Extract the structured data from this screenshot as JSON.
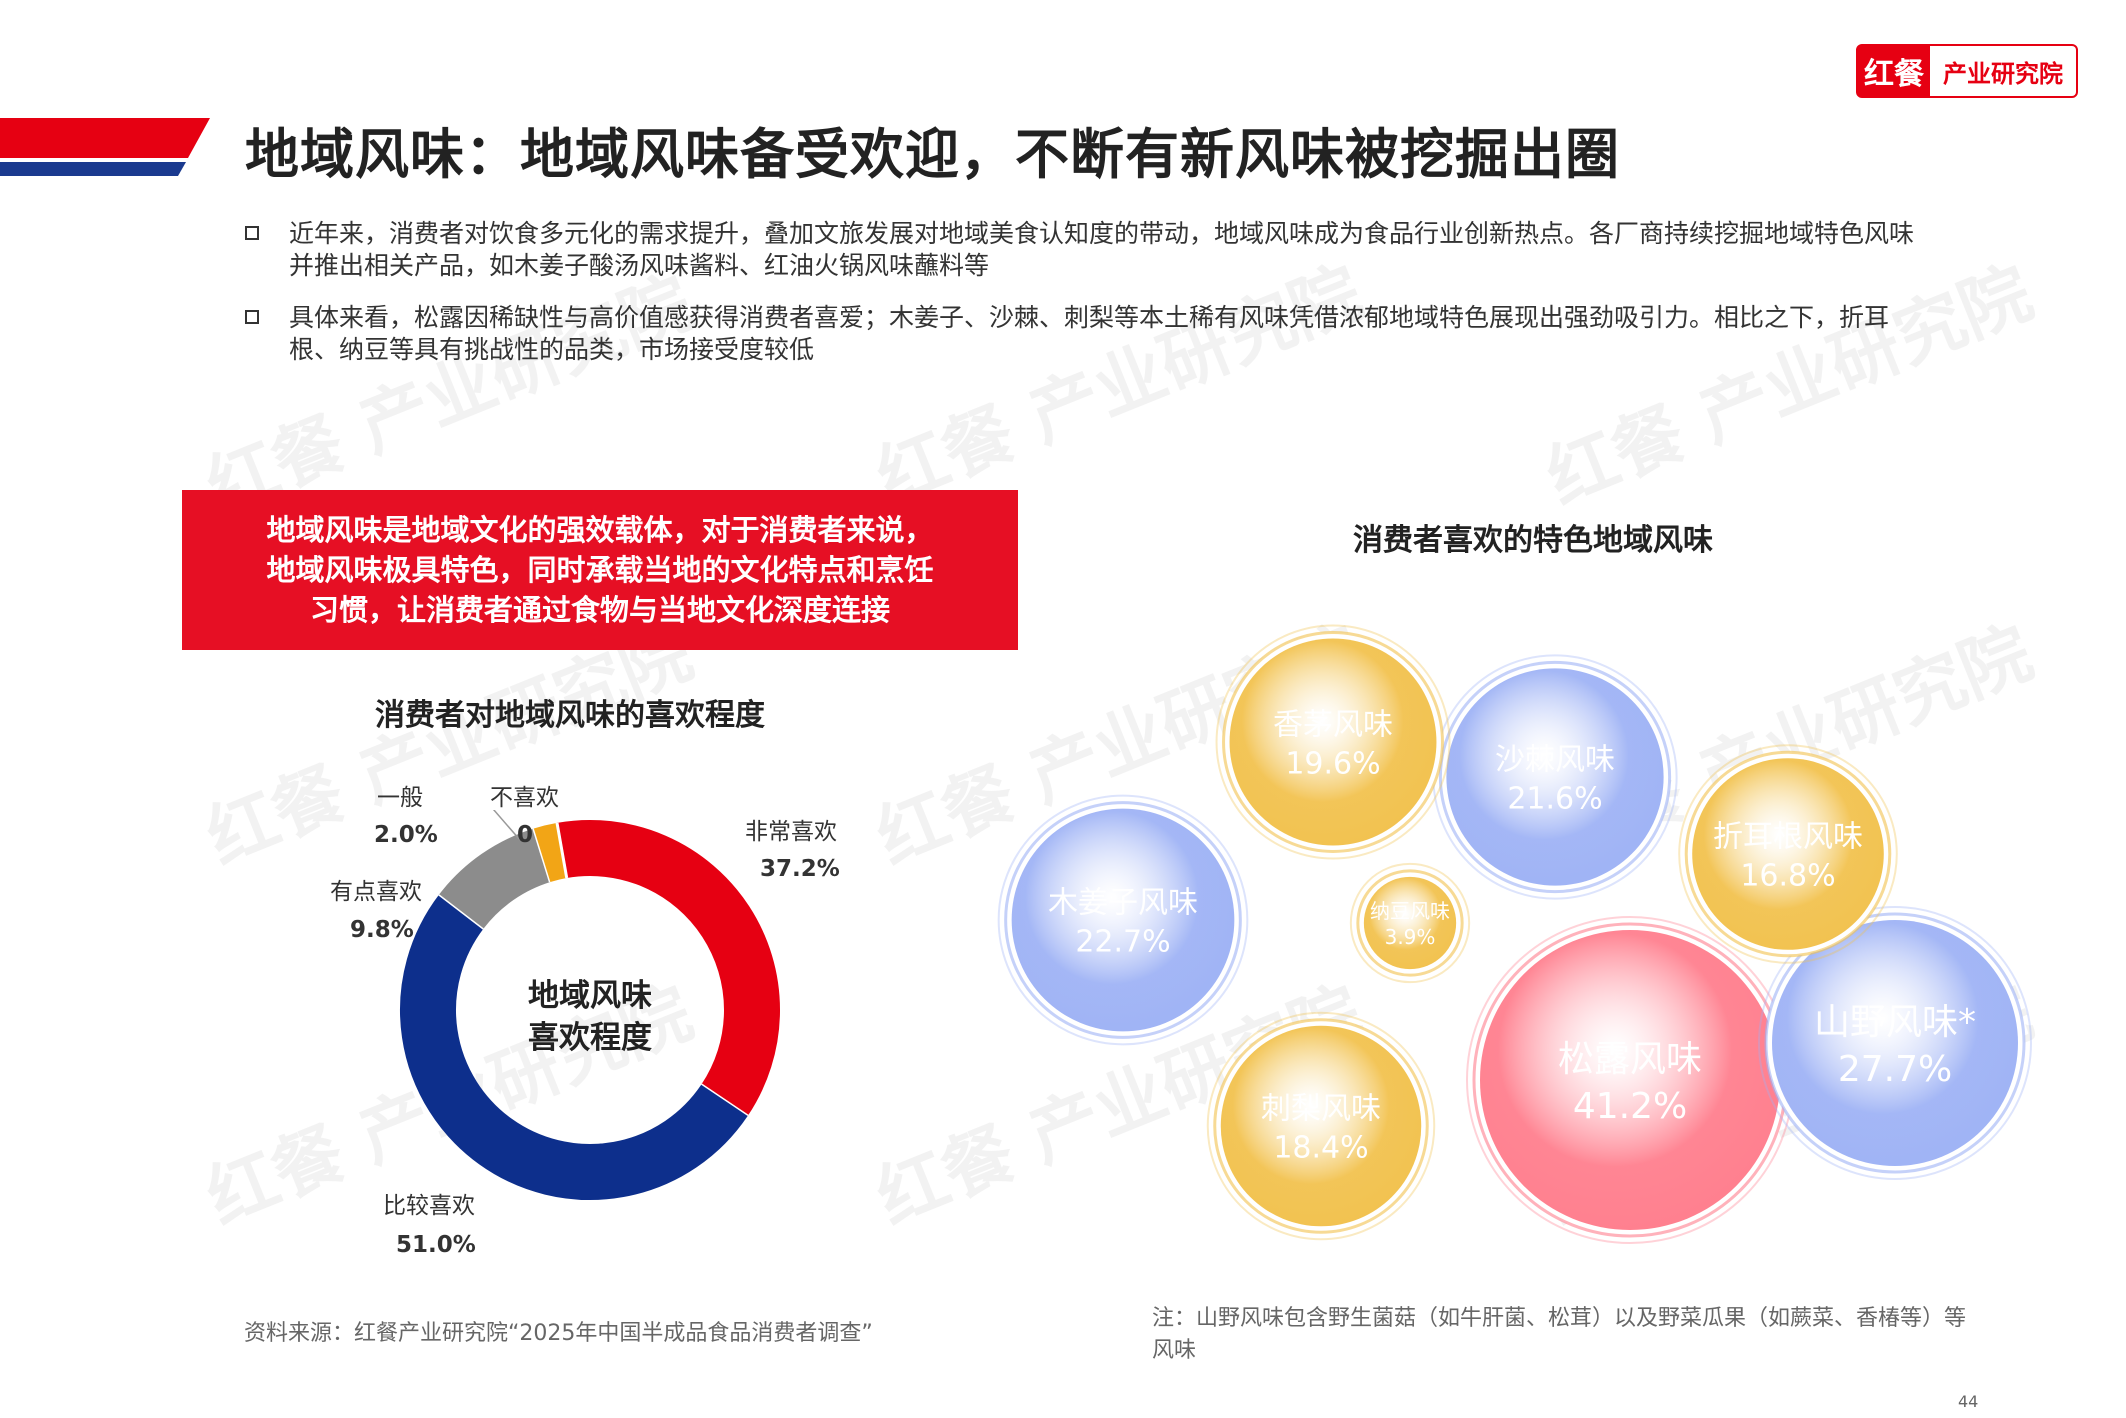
{
  "header": {
    "title": "地域风味：地域风味备受欢迎，不断有新风味被挖掘出圈",
    "logo_mark": "红餐",
    "logo_name": "产业研究院",
    "brand_red": "#e60012",
    "brand_blue": "#1a3a8f"
  },
  "bullets": [
    "近年来，消费者对饮食多元化的需求提升，叠加文旅发展对地域美食认知度的带动，地域风味成为食品行业创新热点。各厂商持续挖掘地域特色风味并推出相关产品，如木姜子酸汤风味酱料、红油火锅风味蘸料等",
    "具体来看，松露因稀缺性与高价值感获得消费者喜爱；木姜子、沙棘、刺梨等本土稀有风味凭借浓郁地域特色展现出强劲吸引力。相比之下，折耳根、纳豆等具有挑战性的品类，市场接受度较低"
  ],
  "callout": {
    "lines": [
      "地域风味是地域文化的强效载体，对于消费者来说，",
      "地域风味极具特色，同时承载当地的文化特点和烹饪",
      "习惯，让消费者通过食物与当地文化深度连接"
    ]
  },
  "donut": {
    "center_line1": "地域风味",
    "center_line2": "喜欢程度",
    "source": "资料来源：红餐产业研究院“2025年中国半成品食品消费者调查”"
  },
  "bubble": {
    "note": "注：山野风味包含野生菌菇（如牛肝菌、松茸）以及野菜瓜果（如蕨菜、香椿等）等风味"
  },
  "watermark": "红餐 产业研究院",
  "page_number": "44",
  "chart_data": [
    {
      "type": "pie",
      "title": "消费者对地域风味的喜欢程度",
      "categories": [
        "非常喜欢",
        "比较喜欢",
        "有点喜欢",
        "一般",
        "不喜欢"
      ],
      "values": [
        37.2,
        51.0,
        9.8,
        2.0,
        0
      ],
      "value_labels": [
        "37.2%",
        "51.0%",
        "9.8%",
        "2.0%",
        "0"
      ],
      "colors": [
        "#e60012",
        "#0d2f8c",
        "#8c8c8c",
        "#f2a516",
        "#cccccc"
      ],
      "unit": "%"
    },
    {
      "type": "bubble",
      "title": "消费者喜欢的特色地域风味",
      "categories": [
        "松露风味",
        "山野风味*",
        "木姜子风味",
        "沙棘风味",
        "香茅风味",
        "刺梨风味",
        "折耳根风味",
        "纳豆风味"
      ],
      "values": [
        41.2,
        27.7,
        22.7,
        21.6,
        19.6,
        18.4,
        16.8,
        3.9
      ],
      "value_labels": [
        "41.2%",
        "27.7%",
        "22.7%",
        "21.6%",
        "19.6%",
        "18.4%",
        "16.8%",
        "3.9%"
      ],
      "colors": [
        "#ff7f8e",
        "#9fb3f5",
        "#9fb3f5",
        "#9fb3f5",
        "#f2c24f",
        "#f2c24f",
        "#f2c24f",
        "#f2c24f"
      ],
      "unit": "%"
    }
  ]
}
